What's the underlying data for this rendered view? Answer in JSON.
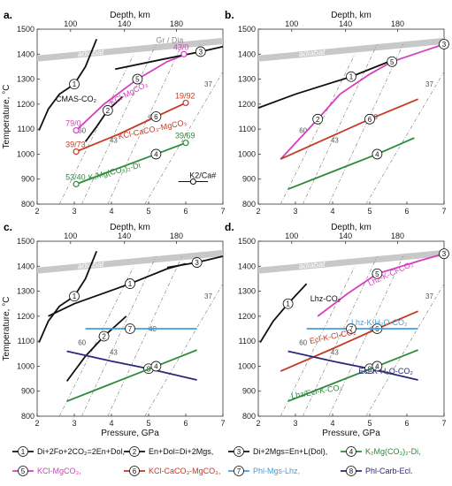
{
  "colors": {
    "black": "#111111",
    "magenta": "#d63fbf",
    "red": "#c43a22",
    "green": "#2a8a3a",
    "lightblue": "#3ea0e0",
    "navy": "#2a2a7a",
    "adiabat": "#c8c8c8",
    "gray": "#8a8a8a",
    "pinkband": "#f2aac8"
  },
  "chart_data": [
    {
      "panel": "a.",
      "type": "line",
      "xlabel": "",
      "ylabel": "Temperature, °C",
      "top_label": "Depth, km",
      "xlim": [
        2,
        7
      ],
      "ylim": [
        800,
        1500
      ],
      "adiabat_label": "adiabat",
      "annotations": {
        "cmas": "CMAS-CO₂",
        "grdia": "Gr / Dia",
        "kcl_mgco3": "KCl-MgCO₃",
        "kcl_cacco": "KCl-CaCO₃-MgCO₃",
        "kmgco": "K₂Mg(CO₃)₂-Di",
        "k2ca": "K2/Ca#"
      },
      "point_labels": [
        {
          "text": "79/0",
          "x": 3.05,
          "y": 1095,
          "color": "magenta"
        },
        {
          "text": "39/73",
          "x": 3.05,
          "y": 1010,
          "color": "red"
        },
        {
          "text": "53/40",
          "x": 3.05,
          "y": 880,
          "color": "green"
        },
        {
          "text": "43/0",
          "x": 5.95,
          "y": 1400,
          "color": "magenta"
        },
        {
          "text": "19/92",
          "x": 6.0,
          "y": 1205,
          "color": "red"
        },
        {
          "text": "39/69",
          "x": 6.0,
          "y": 1045,
          "color": "green"
        }
      ],
      "series": [
        {
          "id": "1",
          "color": "black",
          "x": [
            2.05,
            2.3,
            2.6,
            3.0,
            3.3,
            3.6
          ],
          "y": [
            1095,
            1180,
            1240,
            1280,
            1350,
            1460
          ]
        },
        {
          "id": "2",
          "color": "black",
          "x": [
            3.3,
            3.6,
            3.9,
            4.3
          ],
          "y": [
            1050,
            1110,
            1175,
            1230
          ]
        },
        {
          "id": "5",
          "color": "magenta",
          "x": [
            3.05,
            3.8,
            4.7,
            5.5,
            6.0
          ],
          "y": [
            1095,
            1200,
            1300,
            1370,
            1400
          ]
        },
        {
          "id": "6",
          "color": "red",
          "x": [
            3.05,
            4.2,
            5.2,
            6.0
          ],
          "y": [
            1010,
            1080,
            1150,
            1205
          ]
        },
        {
          "id": "4",
          "color": "green",
          "x": [
            3.05,
            4.3,
            5.2,
            6.0
          ],
          "y": [
            880,
            950,
            1000,
            1045
          ]
        },
        {
          "id": "3",
          "color": "black",
          "x": [
            4.1,
            5.4,
            6.4,
            7.0
          ],
          "y": [
            1340,
            1380,
            1410,
            1430
          ]
        }
      ]
    },
    {
      "panel": "b.",
      "type": "line",
      "xlabel": "",
      "ylabel": "",
      "top_label": "Depth, km",
      "xlim": [
        2,
        7
      ],
      "ylim": [
        800,
        1500
      ],
      "adiabat_label": "adiabat",
      "series": [
        {
          "id": "1",
          "color": "black",
          "x": [
            2.0,
            3.0,
            4.5,
            5.6
          ],
          "y": [
            1185,
            1240,
            1310,
            1375
          ]
        },
        {
          "id": "2",
          "color": "magenta",
          "x": [
            2.6,
            3.1,
            3.6,
            4.2
          ],
          "y": [
            980,
            1060,
            1140,
            1240
          ]
        },
        {
          "id": "5",
          "color": "magenta",
          "x": [
            4.2,
            5.0,
            5.6,
            6.4
          ],
          "y": [
            1240,
            1320,
            1370,
            1410
          ]
        },
        {
          "id": "6",
          "color": "red",
          "x": [
            2.6,
            3.8,
            5.0,
            6.3
          ],
          "y": [
            980,
            1060,
            1140,
            1220
          ]
        },
        {
          "id": "4",
          "color": "green",
          "x": [
            2.8,
            4.0,
            5.2,
            6.2
          ],
          "y": [
            860,
            930,
            1000,
            1065
          ]
        },
        {
          "id": "3",
          "color": "magenta",
          "x": [
            6.4,
            7.0
          ],
          "y": [
            1410,
            1440
          ]
        }
      ]
    },
    {
      "panel": "c.",
      "type": "line",
      "xlabel": "Pressure, GPa",
      "ylabel": "Temperature, °C",
      "top_label": "Depth, km",
      "xlim": [
        2,
        7
      ],
      "ylim": [
        800,
        1500
      ],
      "adiabat_label": "adiabat",
      "series": [
        {
          "id": "1",
          "color": "black",
          "x": [
            2.05,
            2.3,
            2.6,
            3.0,
            3.3,
            3.6
          ],
          "y": [
            1095,
            1180,
            1240,
            1280,
            1350,
            1460
          ]
        },
        {
          "id": "1b",
          "color": "black",
          "x": [
            2.3,
            3.0,
            4.5,
            5.5,
            6.0
          ],
          "y": [
            1200,
            1250,
            1330,
            1390,
            1410
          ]
        },
        {
          "id": "2",
          "color": "black",
          "x": [
            2.8,
            3.3,
            3.8,
            4.4
          ],
          "y": [
            940,
            1040,
            1120,
            1200
          ]
        },
        {
          "id": "7",
          "color": "lightblue",
          "x": [
            3.3,
            4.5,
            6.3
          ],
          "y": [
            1150,
            1150,
            1150
          ]
        },
        {
          "id": "8",
          "color": "navy",
          "x": [
            2.8,
            4.0,
            5.0,
            6.3
          ],
          "y": [
            1060,
            1020,
            990,
            945
          ]
        },
        {
          "id": "4",
          "color": "green",
          "x": [
            2.8,
            4.0,
            5.2,
            6.3
          ],
          "y": [
            860,
            930,
            1000,
            1065
          ]
        },
        {
          "id": "3",
          "color": "black",
          "x": [
            5.5,
            6.3,
            7.0
          ],
          "y": [
            1395,
            1415,
            1440
          ]
        }
      ]
    },
    {
      "panel": "d.",
      "type": "line",
      "xlabel": "Pressure, GPa",
      "ylabel": "",
      "top_label": "Depth, km",
      "xlim": [
        2,
        7
      ],
      "ylim": [
        800,
        1500
      ],
      "adiabat_label": "adiabat",
      "annotations": {
        "lhz": "Lhz-CO₂",
        "lhzk": "Lhz-K-Cl-CO₂",
        "lhzkh": "Lhz-K-H₂O-CO₂",
        "eclk": "Ecl-K-Cl-CO₂",
        "eclkh": "Ecl-K-H₂O-CO₂",
        "lhzecl": "Lhz/Ecl-K-CO₂"
      },
      "series": [
        {
          "id": "1",
          "color": "black",
          "x": [
            2.05,
            2.4,
            2.8,
            3.3
          ],
          "y": [
            1095,
            1180,
            1250,
            1330
          ]
        },
        {
          "id": "5",
          "color": "magenta",
          "x": [
            3.6,
            4.4,
            5.2,
            6.3
          ],
          "y": [
            1200,
            1290,
            1370,
            1420
          ]
        },
        {
          "id": "6",
          "color": "red",
          "x": [
            2.6,
            4.0,
            5.2,
            6.3
          ],
          "y": [
            980,
            1070,
            1150,
            1220
          ]
        },
        {
          "id": "7",
          "color": "lightblue",
          "x": [
            3.3,
            4.5,
            6.3
          ],
          "y": [
            1150,
            1150,
            1150
          ]
        },
        {
          "id": "8",
          "color": "navy",
          "x": [
            2.8,
            4.0,
            5.0,
            6.3
          ],
          "y": [
            1060,
            1020,
            990,
            945
          ]
        },
        {
          "id": "4",
          "color": "green",
          "x": [
            2.8,
            4.0,
            5.2,
            6.3
          ],
          "y": [
            860,
            930,
            1000,
            1065
          ]
        },
        {
          "id": "3",
          "color": "magenta",
          "x": [
            6.3,
            7.0
          ],
          "y": [
            1420,
            1450
          ]
        }
      ]
    }
  ],
  "axes": {
    "x_ticks": [
      "2",
      "3",
      "4",
      "5",
      "6",
      "7"
    ],
    "y_ticks": [
      "800",
      "900",
      "1000",
      "1100",
      "1200",
      "1300",
      "1400",
      "1500"
    ],
    "depth_ticks": [
      "100",
      "140",
      "180"
    ],
    "isotherm_labels": [
      "60",
      "43",
      "40",
      "37"
    ]
  },
  "legend": [
    {
      "num": "1",
      "text": "Di+2Fo+2CO₂=2En+Dol,",
      "color": "black"
    },
    {
      "num": "2",
      "text": "En+Dol=Di+2Mgs,",
      "color": "black"
    },
    {
      "num": "3",
      "text": "Di+2Mgs=En+L(Dol),",
      "color": "black"
    },
    {
      "num": "4",
      "text": "K₂Mg(CO₃)₂-Di,",
      "color": "green"
    },
    {
      "num": "5",
      "text": "KCl-MgCO₃,",
      "color": "magenta"
    },
    {
      "num": "6",
      "text": "KCl-CaCO₃-MgCO₃,",
      "color": "red"
    },
    {
      "num": "7",
      "text": "Phl-Mgs-Lhz,",
      "color": "lightblue"
    },
    {
      "num": "8",
      "text": "Phl-Carb-Ecl.",
      "color": "navy"
    }
  ]
}
